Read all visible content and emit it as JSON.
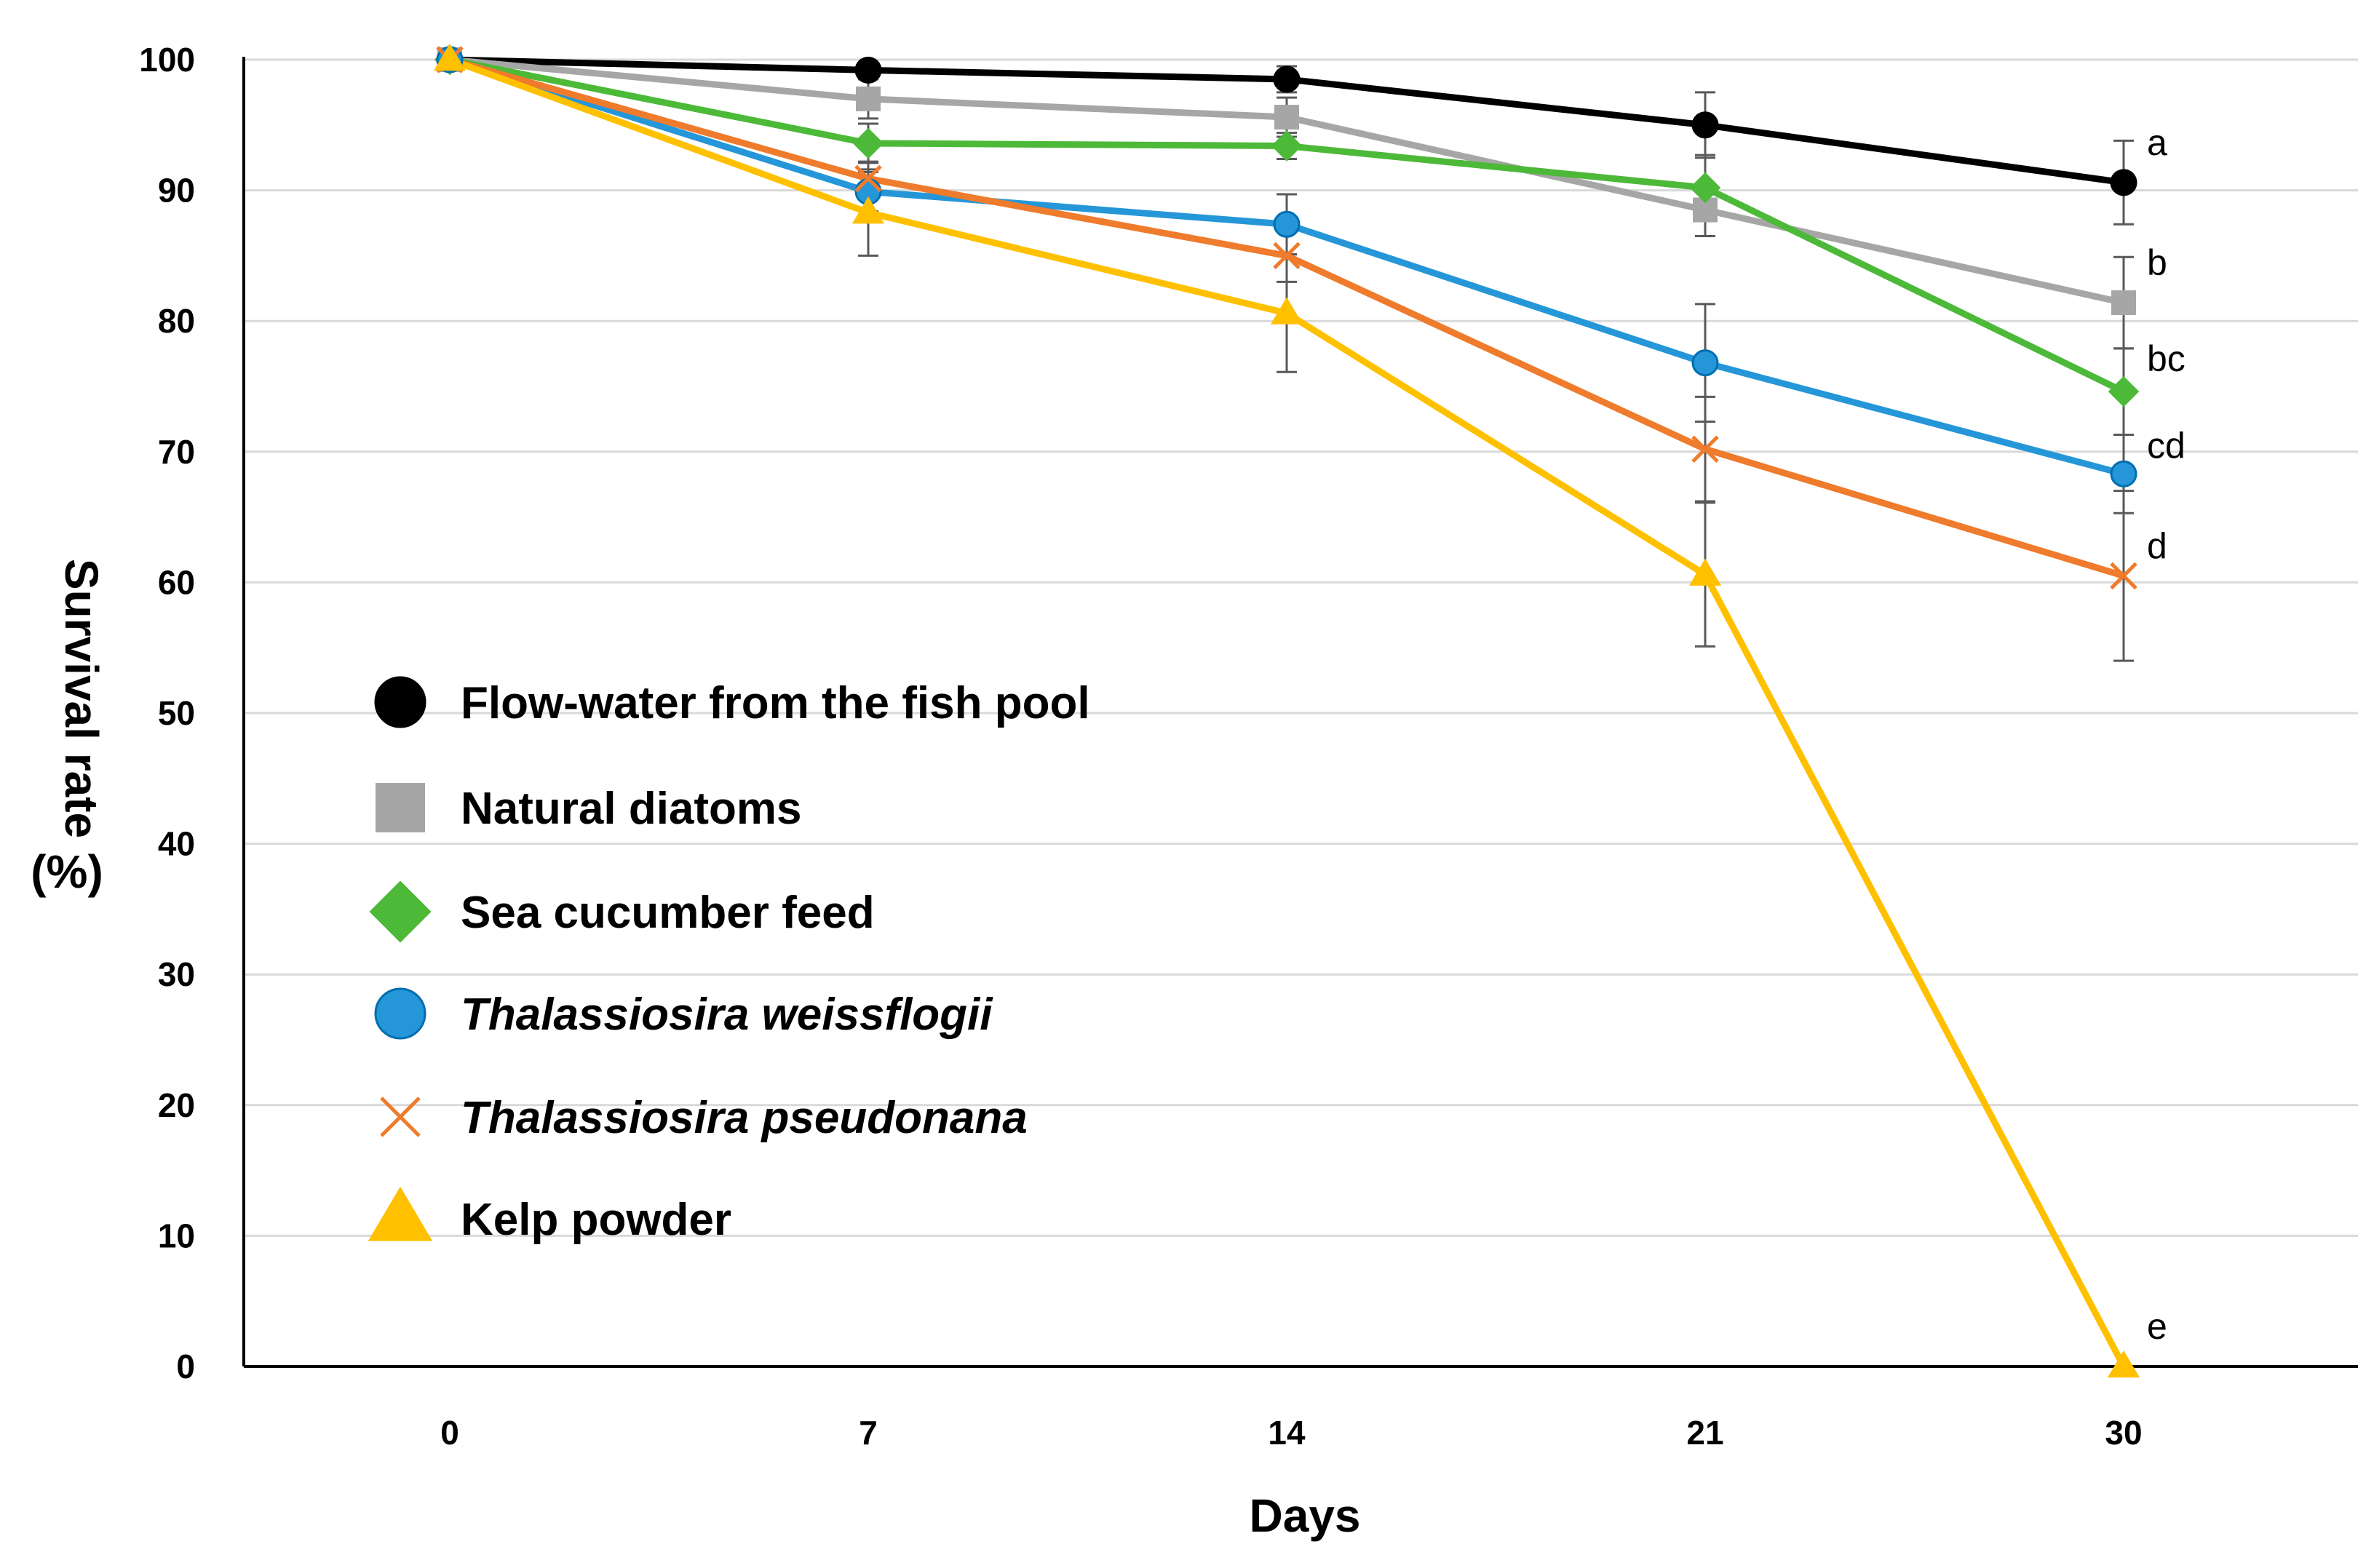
{
  "chart_data": {
    "type": "line",
    "title": "",
    "xlabel": "Days",
    "ylabel": "Survival rate (%)",
    "ylabel_lines": [
      "Survival rate",
      "(%)"
    ],
    "categories": [
      "0",
      "7",
      "14",
      "21",
      "30"
    ],
    "ylim": [
      0,
      100
    ],
    "yticks": [
      0,
      10,
      20,
      30,
      40,
      50,
      60,
      70,
      80,
      90,
      100
    ],
    "grid": true,
    "legend_position": "left",
    "series": [
      {
        "name": "Flow-water from the fish pool",
        "italic": false,
        "marker": "circle",
        "color": "#000000",
        "values": [
          100,
          99.2,
          98.5,
          95.0,
          90.6
        ],
        "errors": [
          0,
          0.5,
          1.0,
          2.5,
          3.2
        ],
        "sig": "a"
      },
      {
        "name": "Natural diatoms",
        "italic": false,
        "marker": "square",
        "color": "#a6a6a6",
        "values": [
          100,
          97.0,
          95.6,
          88.5,
          81.4
        ],
        "errors": [
          0,
          1.5,
          1.5,
          2.0,
          3.5
        ],
        "sig": "b"
      },
      {
        "name": "Sea cucumber feed",
        "italic": false,
        "marker": "diamond",
        "color": "#4cb938",
        "values": [
          100,
          93.6,
          93.4,
          90.2,
          74.6
        ],
        "errors": [
          0,
          1.5,
          1.0,
          2.5,
          3.3
        ],
        "sig": "bc"
      },
      {
        "name": "Thalassiosira weissflogii",
        "italic": true,
        "marker": "circle",
        "color": "#2596d8",
        "values": [
          100,
          89.9,
          87.4,
          76.8,
          68.3
        ],
        "errors": [
          0,
          1.5,
          2.3,
          4.5,
          3.0
        ],
        "sig": "cd"
      },
      {
        "name": "Thalassiosira pseudonana",
        "italic": true,
        "marker": "x",
        "color": "#ef7b2c",
        "values": [
          100,
          90.9,
          85.0,
          70.2,
          60.5
        ],
        "errors": [
          0,
          1.3,
          2.0,
          4.0,
          6.5
        ],
        "sig": "d"
      },
      {
        "name": "Kelp powder",
        "italic": false,
        "marker": "triangle",
        "color": "#ffc000",
        "values": [
          100,
          88.3,
          80.6,
          60.6,
          0
        ],
        "errors": [
          0,
          3.3,
          4.5,
          5.5,
          0
        ],
        "sig": "e"
      }
    ]
  }
}
